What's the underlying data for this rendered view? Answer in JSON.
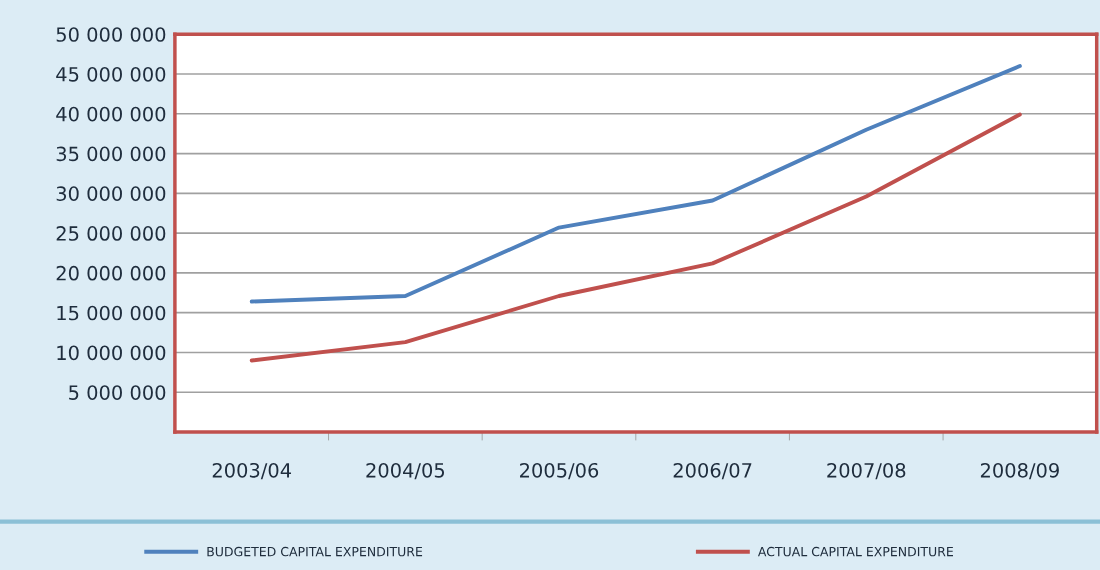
{
  "chart_data": {
    "type": "line",
    "categories": [
      "2003/04",
      "2004/05",
      "2005/06",
      "2006/07",
      "2007/08",
      "2008/09"
    ],
    "series": [
      {
        "name": "BUDGETED CAPITAL EXPENDITURE",
        "color": "#4f81bd",
        "values": [
          16400000,
          17100000,
          25700000,
          29100000,
          38000000,
          46000000
        ]
      },
      {
        "name": "ACTUAL CAPITAL EXPENDITURE",
        "color": "#c0504d",
        "values": [
          9000000,
          11300000,
          17100000,
          21200000,
          29600000,
          39900000
        ]
      }
    ],
    "ylim": [
      0,
      50000000
    ],
    "yticks": [
      {
        "value": 5000000,
        "label": "5 000 000"
      },
      {
        "value": 10000000,
        "label": "10 000 000"
      },
      {
        "value": 15000000,
        "label": "15 000 000"
      },
      {
        "value": 20000000,
        "label": "20 000 000"
      },
      {
        "value": 25000000,
        "label": "25 000 000"
      },
      {
        "value": 30000000,
        "label": "30 000 000"
      },
      {
        "value": 35000000,
        "label": "35 000 000"
      },
      {
        "value": 40000000,
        "label": "40 000 000"
      },
      {
        "value": 45000000,
        "label": "45 000 000"
      },
      {
        "value": 50000000,
        "label": "50 000 000"
      }
    ],
    "grid": "y",
    "legend": "bottom",
    "marker": "none",
    "line_style": "solid"
  }
}
